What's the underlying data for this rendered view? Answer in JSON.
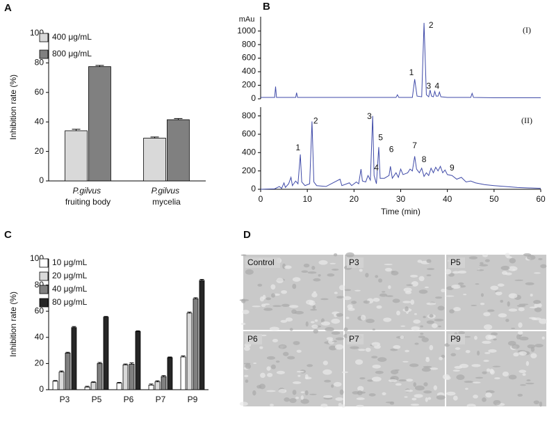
{
  "panel_labels": [
    "A",
    "B",
    "C",
    "D"
  ],
  "chart_data": [
    {
      "type": "bar",
      "ylabel": "Inhibition rate (%)",
      "categories": [
        "P.gilvus fruiting body",
        "P.gilvus mycelia"
      ],
      "series": [
        {
          "name": "400 μg/mL",
          "color": "#d9d9d9",
          "values": [
            34,
            29
          ],
          "errors": [
            1,
            0.8
          ]
        },
        {
          "name": "800 μg/mL",
          "color": "#808080",
          "values": [
            77.5,
            41.5
          ],
          "errors": [
            0.8,
            0.8
          ]
        }
      ],
      "ylim": [
        0,
        100
      ],
      "yticks": [
        0,
        20,
        40,
        60,
        80,
        100
      ],
      "legend": "upper left"
    },
    {
      "type": "line",
      "ylabel": "mAu",
      "annotation": "(I)",
      "x": [
        0,
        3,
        3.2,
        3.4,
        7.5,
        7.7,
        7.9,
        15,
        29,
        29.3,
        29.6,
        32.5,
        33,
        33.5,
        34.5,
        35,
        35.5,
        36,
        36.3,
        36.6,
        37,
        37.3,
        37.6,
        38,
        38.3,
        38.6,
        40,
        45,
        45.3,
        45.6,
        50,
        60
      ],
      "series": [
        {
          "color": "#3f4aa8",
          "values": [
            20,
            20,
            180,
            20,
            20,
            90,
            20,
            20,
            20,
            60,
            20,
            20,
            290,
            40,
            30,
            1120,
            60,
            30,
            130,
            40,
            30,
            110,
            40,
            40,
            100,
            30,
            20,
            20,
            80,
            20,
            15,
            15
          ]
        }
      ],
      "peak_labels": [
        {
          "text": "1",
          "x": 32.3,
          "y": 380
        },
        {
          "text": "2",
          "x": 36.5,
          "y": 1080
        },
        {
          "text": "3",
          "x": 36,
          "y": 180
        },
        {
          "text": "4",
          "x": 37.8,
          "y": 180
        }
      ],
      "xlim": [
        0,
        60
      ],
      "ylim": [
        0,
        1150
      ],
      "yticks": [
        0,
        200,
        400,
        600,
        800,
        1000
      ]
    },
    {
      "type": "line",
      "annotation": "(II)",
      "xlabel": "Time (min)",
      "x": [
        0,
        3,
        4,
        4.5,
        5,
        5.3,
        6,
        6.5,
        6.8,
        7.5,
        8,
        8.5,
        8.8,
        9.5,
        10.5,
        11,
        11.4,
        12,
        14,
        17,
        17.4,
        19,
        19.5,
        20.5,
        21,
        21.5,
        21.8,
        22.5,
        23,
        23.5,
        24,
        24.3,
        24.8,
        25.3,
        25.6,
        26.5,
        27.5,
        27.8,
        28.2,
        29,
        29.5,
        30,
        30.5,
        31.5,
        32,
        32.5,
        33,
        33.4,
        34,
        34.5,
        35,
        35.5,
        36,
        36.5,
        37,
        37.5,
        38,
        38.5,
        39,
        39.5,
        40,
        41,
        42,
        43,
        44,
        45,
        46,
        48,
        50,
        55,
        60
      ],
      "series": [
        {
          "color": "#3f4aa8",
          "values": [
            0,
            5,
            30,
            10,
            70,
            20,
            60,
            130,
            40,
            90,
            60,
            380,
            80,
            40,
            60,
            740,
            80,
            40,
            30,
            110,
            40,
            70,
            40,
            80,
            60,
            220,
            90,
            80,
            150,
            100,
            800,
            150,
            60,
            460,
            120,
            120,
            150,
            250,
            120,
            180,
            130,
            220,
            160,
            180,
            220,
            200,
            360,
            220,
            180,
            230,
            140,
            180,
            150,
            230,
            180,
            240,
            200,
            250,
            180,
            210,
            160,
            150,
            110,
            130,
            80,
            90,
            70,
            50,
            40,
            20,
            10
          ]
        }
      ],
      "peak_labels": [
        {
          "text": "1",
          "x": 8,
          "y": 450
        },
        {
          "text": "2",
          "x": 11.8,
          "y": 740
        },
        {
          "text": "3",
          "x": 23.3,
          "y": 790
        },
        {
          "text": "4",
          "x": 24.8,
          "y": 230
        },
        {
          "text": "5",
          "x": 25.7,
          "y": 560
        },
        {
          "text": "6",
          "x": 28,
          "y": 430
        },
        {
          "text": "7",
          "x": 33,
          "y": 470
        },
        {
          "text": "8",
          "x": 35,
          "y": 320
        },
        {
          "text": "9",
          "x": 41,
          "y": 230
        }
      ],
      "xlim": [
        0,
        60
      ],
      "xticks": [
        0,
        10,
        20,
        30,
        40,
        50,
        60
      ],
      "ylim": [
        0,
        850
      ],
      "yticks": [
        0,
        200,
        400,
        600,
        800
      ]
    },
    {
      "type": "bar",
      "ylabel": "Inhibition rate (%)",
      "categories": [
        "P3",
        "P5",
        "P6",
        "P7",
        "P9"
      ],
      "series": [
        {
          "name": "10 μg/mL",
          "color": "#ffffff",
          "values": [
            6.5,
            2,
            5,
            3.5,
            25
          ],
          "errors": [
            0.5,
            0.6,
            0.5,
            0.8,
            0.8
          ]
        },
        {
          "name": "20 μg/mL",
          "color": "#d9d9d9",
          "values": [
            13.5,
            5.5,
            19,
            6,
            58.5
          ],
          "errors": [
            0.8,
            0.5,
            0.6,
            0.8,
            0.8
          ]
        },
        {
          "name": "40 μg/mL",
          "color": "#808080",
          "values": [
            28,
            20,
            19.5,
            10,
            69.5
          ],
          "errors": [
            0.6,
            0.8,
            1,
            0.8,
            0.8
          ]
        },
        {
          "name": "80 μg/mL",
          "color": "#262626",
          "values": [
            47.5,
            55.5,
            44.5,
            24.5,
            83.5
          ],
          "errors": [
            0.8,
            0.5,
            0.5,
            0.5,
            0.8
          ]
        }
      ],
      "ylim": [
        0,
        100
      ],
      "yticks": [
        0,
        20,
        40,
        60,
        80,
        100
      ],
      "legend": "upper left"
    }
  ],
  "micrographs": {
    "labels": [
      "Control",
      "P3",
      "P5",
      "P6",
      "P7",
      "P9"
    ]
  }
}
